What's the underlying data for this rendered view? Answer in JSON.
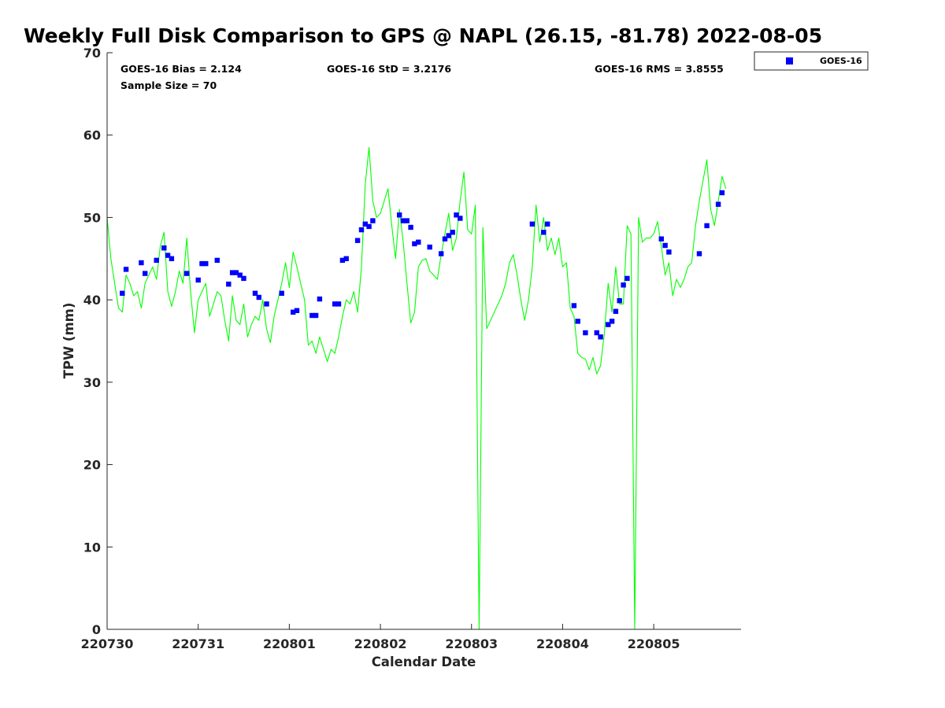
{
  "chart_data": {
    "type": "line",
    "title": "Weekly Full Disk Comparison to GPS @ NAPL (26.15, -81.78) 2022-08-05",
    "xlabel": "Calendar Date",
    "ylabel": "TPW (mm)",
    "xlim": [
      "2022-07-30T00:00",
      "2022-08-05T23:00"
    ],
    "ylim": [
      0,
      70
    ],
    "x_ticks": [
      "2022-07-30",
      "2022-07-31",
      "2022-08-01",
      "2022-08-02",
      "2022-08-03",
      "2022-08-04",
      "2022-08-05"
    ],
    "x_tick_labels": [
      "220730",
      "220731",
      "220801",
      "220802",
      "220803",
      "220804",
      "220805"
    ],
    "y_ticks": [
      0,
      10,
      20,
      30,
      40,
      50,
      60,
      70
    ],
    "y_tick_labels": [
      "0",
      "10",
      "20",
      "30",
      "40",
      "50",
      "60",
      "70"
    ],
    "grid": false,
    "legend_position": "outside-top-right",
    "stats": {
      "bias": "GOES-16 Bias = 2.124",
      "std": "GOES-16 StD = 3.2176",
      "rms": "GOES-16 RMS = 3.8555",
      "sample": "Sample Size = 70"
    },
    "series": [
      {
        "name": "",
        "kind": "line",
        "color": "#00ff00",
        "points": [
          [
            "2022-07-30T00:00",
            50.0
          ],
          [
            "2022-07-30T01:00",
            45.0
          ],
          [
            "2022-07-30T02:00",
            42.0
          ],
          [
            "2022-07-30T03:00",
            39.0
          ],
          [
            "2022-07-30T04:00",
            38.5
          ],
          [
            "2022-07-30T05:00",
            43.0
          ],
          [
            "2022-07-30T06:00",
            42.0
          ],
          [
            "2022-07-30T07:00",
            40.5
          ],
          [
            "2022-07-30T08:00",
            41.0
          ],
          [
            "2022-07-30T09:00",
            39.0
          ],
          [
            "2022-07-30T10:00",
            42.0
          ],
          [
            "2022-07-30T11:00",
            43.0
          ],
          [
            "2022-07-30T12:00",
            44.0
          ],
          [
            "2022-07-30T13:00",
            42.5
          ],
          [
            "2022-07-30T14:00",
            46.5
          ],
          [
            "2022-07-30T15:00",
            48.2
          ],
          [
            "2022-07-30T16:00",
            41.0
          ],
          [
            "2022-07-30T17:00",
            39.2
          ],
          [
            "2022-07-30T18:00",
            41.0
          ],
          [
            "2022-07-30T19:00",
            43.5
          ],
          [
            "2022-07-30T20:00",
            42.0
          ],
          [
            "2022-07-30T21:00",
            47.5
          ],
          [
            "2022-07-30T22:00",
            41.0
          ],
          [
            "2022-07-30T23:00",
            36.0
          ],
          [
            "2022-07-31T00:00",
            40.0
          ],
          [
            "2022-07-31T01:00",
            41.0
          ],
          [
            "2022-07-31T02:00",
            42.0
          ],
          [
            "2022-07-31T03:00",
            38.0
          ],
          [
            "2022-07-31T04:00",
            39.5
          ],
          [
            "2022-07-31T05:00",
            41.0
          ],
          [
            "2022-07-31T06:00",
            40.5
          ],
          [
            "2022-07-31T07:00",
            37.5
          ],
          [
            "2022-07-31T08:00",
            35.0
          ],
          [
            "2022-07-31T09:00",
            40.5
          ],
          [
            "2022-07-31T10:00",
            37.5
          ],
          [
            "2022-07-31T11:00",
            37.0
          ],
          [
            "2022-07-31T12:00",
            39.5
          ],
          [
            "2022-07-31T13:00",
            35.5
          ],
          [
            "2022-07-31T14:00",
            37.0
          ],
          [
            "2022-07-31T15:00",
            38.0
          ],
          [
            "2022-07-31T16:00",
            37.5
          ],
          [
            "2022-07-31T17:00",
            40.0
          ],
          [
            "2022-07-31T18:00",
            36.5
          ],
          [
            "2022-07-31T19:00",
            34.8
          ],
          [
            "2022-07-31T20:00",
            38.0
          ],
          [
            "2022-07-31T21:00",
            40.0
          ],
          [
            "2022-07-31T22:00",
            42.0
          ],
          [
            "2022-07-31T23:00",
            44.5
          ],
          [
            "2022-08-01T00:00",
            41.5
          ],
          [
            "2022-08-01T01:00",
            45.8
          ],
          [
            "2022-08-01T02:00",
            44.0
          ],
          [
            "2022-08-01T03:00",
            42.0
          ],
          [
            "2022-08-01T04:00",
            40.0
          ],
          [
            "2022-08-01T05:00",
            34.5
          ],
          [
            "2022-08-01T06:00",
            35.0
          ],
          [
            "2022-08-01T07:00",
            33.5
          ],
          [
            "2022-08-01T08:00",
            35.5
          ],
          [
            "2022-08-01T09:00",
            34.0
          ],
          [
            "2022-08-01T10:00",
            32.5
          ],
          [
            "2022-08-01T11:00",
            34.0
          ],
          [
            "2022-08-01T12:00",
            33.5
          ],
          [
            "2022-08-01T13:00",
            35.5
          ],
          [
            "2022-08-01T14:00",
            38.0
          ],
          [
            "2022-08-01T15:00",
            40.0
          ],
          [
            "2022-08-01T16:00",
            39.5
          ],
          [
            "2022-08-01T17:00",
            41.0
          ],
          [
            "2022-08-01T18:00",
            38.5
          ],
          [
            "2022-08-01T19:00",
            44.0
          ],
          [
            "2022-08-01T20:00",
            54.0
          ],
          [
            "2022-08-01T21:00",
            58.5
          ],
          [
            "2022-08-01T22:00",
            52.0
          ],
          [
            "2022-08-01T23:00",
            50.0
          ],
          [
            "2022-08-02T00:00",
            50.5
          ],
          [
            "2022-08-02T01:00",
            52.0
          ],
          [
            "2022-08-02T02:00",
            53.5
          ],
          [
            "2022-08-02T03:00",
            49.0
          ],
          [
            "2022-08-02T04:00",
            45.0
          ],
          [
            "2022-08-02T05:00",
            51.0
          ],
          [
            "2022-08-02T06:00",
            47.0
          ],
          [
            "2022-08-02T07:00",
            42.0
          ],
          [
            "2022-08-02T08:00",
            37.2
          ],
          [
            "2022-08-02T09:00",
            38.5
          ],
          [
            "2022-08-02T10:00",
            44.0
          ],
          [
            "2022-08-02T11:00",
            44.8
          ],
          [
            "2022-08-02T12:00",
            45.0
          ],
          [
            "2022-08-02T13:00",
            43.5
          ],
          [
            "2022-08-02T14:00",
            43.0
          ],
          [
            "2022-08-02T15:00",
            42.5
          ],
          [
            "2022-08-02T16:00",
            45.5
          ],
          [
            "2022-08-02T17:00",
            48.0
          ],
          [
            "2022-08-02T18:00",
            50.5
          ],
          [
            "2022-08-02T19:00",
            46.0
          ],
          [
            "2022-08-02T20:00",
            47.5
          ],
          [
            "2022-08-02T21:00",
            52.0
          ],
          [
            "2022-08-02T22:00",
            55.5
          ],
          [
            "2022-08-02T23:00",
            48.5
          ],
          [
            "2022-08-03T00:00",
            48.0
          ],
          [
            "2022-08-03T01:00",
            51.5
          ],
          [
            "2022-08-03T02:00",
            0.0
          ],
          [
            "2022-08-03T03:00",
            48.8
          ],
          [
            "2022-08-03T04:00",
            36.5
          ],
          [
            "2022-08-03T05:00",
            37.5
          ],
          [
            "2022-08-03T06:00",
            38.5
          ],
          [
            "2022-08-03T07:00",
            39.5
          ],
          [
            "2022-08-03T08:00",
            40.5
          ],
          [
            "2022-08-03T09:00",
            42.0
          ],
          [
            "2022-08-03T10:00",
            44.5
          ],
          [
            "2022-08-03T11:00",
            45.5
          ],
          [
            "2022-08-03T12:00",
            43.0
          ],
          [
            "2022-08-03T13:00",
            40.0
          ],
          [
            "2022-08-03T14:00",
            37.5
          ],
          [
            "2022-08-03T15:00",
            40.0
          ],
          [
            "2022-08-03T16:00",
            44.0
          ],
          [
            "2022-08-03T17:00",
            51.5
          ],
          [
            "2022-08-03T18:00",
            47.0
          ],
          [
            "2022-08-03T19:00",
            50.0
          ],
          [
            "2022-08-03T20:00",
            46.0
          ],
          [
            "2022-08-03T21:00",
            47.5
          ],
          [
            "2022-08-03T22:00",
            45.5
          ],
          [
            "2022-08-03T23:00",
            47.5
          ],
          [
            "2022-08-04T00:00",
            44.0
          ],
          [
            "2022-08-04T01:00",
            44.5
          ],
          [
            "2022-08-04T02:00",
            39.0
          ],
          [
            "2022-08-04T03:00",
            38.0
          ],
          [
            "2022-08-04T04:00",
            33.5
          ],
          [
            "2022-08-04T05:00",
            33.0
          ],
          [
            "2022-08-04T06:00",
            32.8
          ],
          [
            "2022-08-04T07:00",
            31.5
          ],
          [
            "2022-08-04T08:00",
            33.0
          ],
          [
            "2022-08-04T09:00",
            31.0
          ],
          [
            "2022-08-04T10:00",
            32.0
          ],
          [
            "2022-08-04T11:00",
            36.0
          ],
          [
            "2022-08-04T12:00",
            42.0
          ],
          [
            "2022-08-04T13:00",
            38.5
          ],
          [
            "2022-08-04T14:00",
            44.0
          ],
          [
            "2022-08-04T15:00",
            39.5
          ],
          [
            "2022-08-04T16:00",
            39.5
          ],
          [
            "2022-08-04T17:00",
            49.0
          ],
          [
            "2022-08-04T18:00",
            48.0
          ],
          [
            "2022-08-04T19:00",
            0.0
          ],
          [
            "2022-08-04T20:00",
            50.0
          ],
          [
            "2022-08-04T21:00",
            47.0
          ],
          [
            "2022-08-04T22:00",
            47.5
          ],
          [
            "2022-08-04T23:00",
            47.5
          ],
          [
            "2022-08-05T00:00",
            48.0
          ],
          [
            "2022-08-05T01:00",
            49.5
          ],
          [
            "2022-08-05T02:00",
            46.5
          ],
          [
            "2022-08-05T03:00",
            43.0
          ],
          [
            "2022-08-05T04:00",
            44.5
          ],
          [
            "2022-08-05T05:00",
            40.5
          ],
          [
            "2022-08-05T06:00",
            42.5
          ],
          [
            "2022-08-05T07:00",
            41.5
          ],
          [
            "2022-08-05T08:00",
            42.5
          ],
          [
            "2022-08-05T09:00",
            44.0
          ],
          [
            "2022-08-05T10:00",
            44.5
          ],
          [
            "2022-08-05T11:00",
            49.0
          ],
          [
            "2022-08-05T12:00",
            52.0
          ],
          [
            "2022-08-05T13:00",
            54.5
          ],
          [
            "2022-08-05T14:00",
            57.0
          ],
          [
            "2022-08-05T15:00",
            51.0
          ],
          [
            "2022-08-05T16:00",
            49.0
          ],
          [
            "2022-08-05T17:00",
            52.0
          ],
          [
            "2022-08-05T18:00",
            55.0
          ],
          [
            "2022-08-05T19:00",
            53.5
          ]
        ]
      },
      {
        "name": "GOES-16",
        "kind": "scatter",
        "color": "#0000ff",
        "points": [
          [
            "2022-07-30T04:00",
            40.8
          ],
          [
            "2022-07-30T05:00",
            43.7
          ],
          [
            "2022-07-30T09:00",
            44.5
          ],
          [
            "2022-07-30T10:00",
            43.2
          ],
          [
            "2022-07-30T13:00",
            44.8
          ],
          [
            "2022-07-30T15:00",
            46.3
          ],
          [
            "2022-07-30T16:00",
            45.4
          ],
          [
            "2022-07-30T17:00",
            45.0
          ],
          [
            "2022-07-30T21:00",
            43.2
          ],
          [
            "2022-07-31T00:00",
            42.4
          ],
          [
            "2022-07-31T01:00",
            44.4
          ],
          [
            "2022-07-31T02:00",
            44.4
          ],
          [
            "2022-07-31T05:00",
            44.8
          ],
          [
            "2022-07-31T08:00",
            41.9
          ],
          [
            "2022-07-31T09:00",
            43.3
          ],
          [
            "2022-07-31T10:00",
            43.3
          ],
          [
            "2022-07-31T11:00",
            43.0
          ],
          [
            "2022-07-31T12:00",
            42.6
          ],
          [
            "2022-07-31T15:00",
            40.8
          ],
          [
            "2022-07-31T16:00",
            40.3
          ],
          [
            "2022-07-31T18:00",
            39.5
          ],
          [
            "2022-07-31T22:00",
            40.8
          ],
          [
            "2022-08-01T01:00",
            38.5
          ],
          [
            "2022-08-01T02:00",
            38.7
          ],
          [
            "2022-08-01T06:00",
            38.1
          ],
          [
            "2022-08-01T07:00",
            38.1
          ],
          [
            "2022-08-01T08:00",
            40.1
          ],
          [
            "2022-08-01T12:00",
            39.5
          ],
          [
            "2022-08-01T13:00",
            39.5
          ],
          [
            "2022-08-01T14:00",
            44.8
          ],
          [
            "2022-08-01T15:00",
            45.0
          ],
          [
            "2022-08-01T18:00",
            47.2
          ],
          [
            "2022-08-01T19:00",
            48.5
          ],
          [
            "2022-08-01T20:00",
            49.2
          ],
          [
            "2022-08-01T21:00",
            48.9
          ],
          [
            "2022-08-01T22:00",
            49.6
          ],
          [
            "2022-08-02T05:00",
            50.3
          ],
          [
            "2022-08-02T06:00",
            49.6
          ],
          [
            "2022-08-02T07:00",
            49.6
          ],
          [
            "2022-08-02T08:00",
            48.8
          ],
          [
            "2022-08-02T09:00",
            46.8
          ],
          [
            "2022-08-02T10:00",
            47.0
          ],
          [
            "2022-08-02T13:00",
            46.4
          ],
          [
            "2022-08-02T16:00",
            45.6
          ],
          [
            "2022-08-02T17:00",
            47.4
          ],
          [
            "2022-08-02T18:00",
            47.8
          ],
          [
            "2022-08-02T19:00",
            48.2
          ],
          [
            "2022-08-02T20:00",
            50.3
          ],
          [
            "2022-08-02T21:00",
            49.9
          ],
          [
            "2022-08-03T16:00",
            49.2
          ],
          [
            "2022-08-03T19:00",
            48.2
          ],
          [
            "2022-08-03T20:00",
            49.2
          ],
          [
            "2022-08-04T03:00",
            39.3
          ],
          [
            "2022-08-04T04:00",
            37.4
          ],
          [
            "2022-08-04T06:00",
            36.0
          ],
          [
            "2022-08-04T09:00",
            36.0
          ],
          [
            "2022-08-04T10:00",
            35.5
          ],
          [
            "2022-08-04T12:00",
            37.0
          ],
          [
            "2022-08-04T13:00",
            37.4
          ],
          [
            "2022-08-04T14:00",
            38.6
          ],
          [
            "2022-08-04T15:00",
            39.9
          ],
          [
            "2022-08-04T16:00",
            41.8
          ],
          [
            "2022-08-04T17:00",
            42.6
          ],
          [
            "2022-08-05T02:00",
            47.4
          ],
          [
            "2022-08-05T03:00",
            46.6
          ],
          [
            "2022-08-05T04:00",
            45.8
          ],
          [
            "2022-08-05T12:00",
            45.6
          ],
          [
            "2022-08-05T14:00",
            49.0
          ],
          [
            "2022-08-05T17:00",
            51.6
          ],
          [
            "2022-08-05T18:00",
            53.0
          ]
        ]
      }
    ]
  }
}
